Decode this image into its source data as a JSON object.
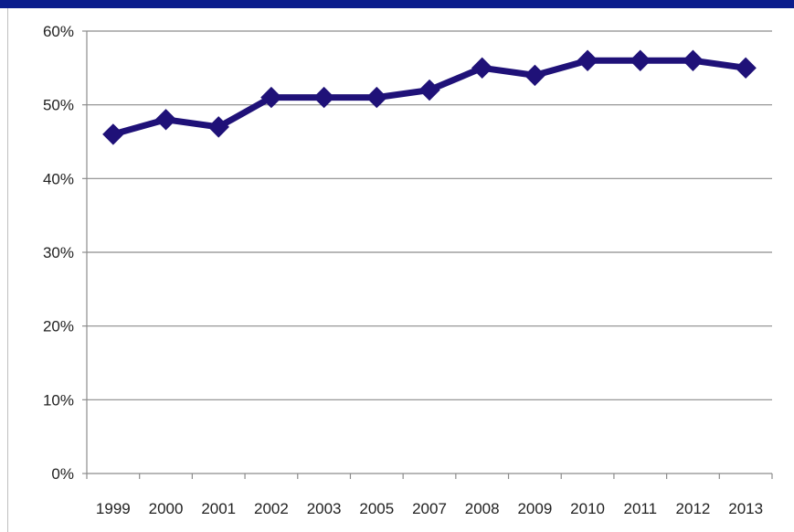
{
  "chart_data": {
    "type": "line",
    "categories": [
      "1999",
      "2000",
      "2001",
      "2002",
      "2003",
      "2005",
      "2007",
      "2008",
      "2009",
      "2010",
      "2011",
      "2012",
      "2013"
    ],
    "series": [
      {
        "values": [
          46,
          48,
          47,
          51,
          51,
          51,
          52,
          55,
          54,
          56,
          56,
          56,
          55
        ],
        "color": "#1f1178",
        "marker": "diamond"
      }
    ],
    "y_ticks": [
      "0%",
      "10%",
      "20%",
      "30%",
      "40%",
      "50%",
      "60%"
    ],
    "ylim": [
      0,
      60
    ],
    "y_unit": "%",
    "grid": true,
    "legend": "none"
  },
  "colors": {
    "top_band": "#0b1d8c",
    "gridline": "#8c8c8c",
    "series": "#1f1178"
  }
}
